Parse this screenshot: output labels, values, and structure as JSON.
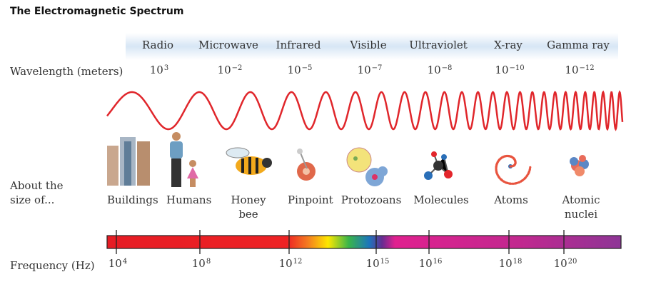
{
  "title": "The Electromagnetic Spectrum",
  "wavelength_label": "Wavelength (meters)",
  "bands": [
    {
      "name": "Radio",
      "wavelength": {
        "base": "10",
        "exponent": "3"
      }
    },
    {
      "name": "Microwave",
      "wavelength": {
        "base": "10",
        "exponent": "−2"
      }
    },
    {
      "name": "Infrared",
      "wavelength": {
        "base": "10",
        "exponent": "−5"
      }
    },
    {
      "name": "Visible",
      "wavelength": {
        "base": "10",
        "exponent": "−7"
      }
    },
    {
      "name": "Ultraviolet",
      "wavelength": {
        "base": "10",
        "exponent": "−8"
      }
    },
    {
      "name": "X-ray",
      "wavelength": {
        "base": "10",
        "exponent": "−10"
      }
    },
    {
      "name": "Gamma ray",
      "wavelength": {
        "base": "10",
        "exponent": "−12"
      }
    }
  ],
  "size_label": "About the size of...",
  "sizes": [
    "Buildings",
    "Humans",
    "Honey bee",
    "Pinpoint",
    "Protozoans",
    "Molecules",
    "Atoms",
    "Atomic nuclei"
  ],
  "frequency_label": "Frequency (Hz)",
  "frequencies": [
    {
      "base": "10",
      "exponent": "4"
    },
    {
      "base": "10",
      "exponent": "8"
    },
    {
      "base": "10",
      "exponent": "12"
    },
    {
      "base": "10",
      "exponent": "15"
    },
    {
      "base": "10",
      "exponent": "16"
    },
    {
      "base": "10",
      "exponent": "18"
    },
    {
      "base": "10",
      "exponent": "20"
    }
  ]
}
